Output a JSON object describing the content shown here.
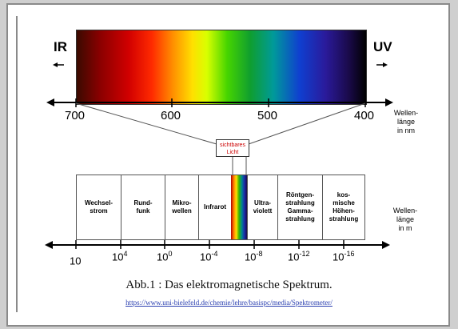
{
  "spectrum": {
    "ir_label": "IR",
    "uv_label": "UV",
    "wavelength_ticks_nm": [
      "700",
      "600",
      "500",
      "400"
    ],
    "axis_label_nm": [
      "Wellen-",
      "länge",
      "in nm"
    ],
    "visible_light_label": [
      "sichtbares",
      "Licht"
    ],
    "regions": [
      {
        "label": [
          "Wechsel-",
          "strom"
        ]
      },
      {
        "label": [
          "Rund-",
          "funk"
        ]
      },
      {
        "label": [
          "Mikro-",
          "wellen"
        ]
      },
      {
        "label": [
          "Infrarot"
        ]
      },
      {
        "label": [
          "Ultra-",
          "violett"
        ]
      },
      {
        "label": [
          "Röntgen-",
          "strahlung",
          "Gamma-",
          "strahlung"
        ]
      },
      {
        "label": [
          "kos-",
          "mische",
          "Höhen-",
          "strahlung"
        ]
      }
    ],
    "wavelength_ticks_m": [
      {
        "base": "10",
        "exp": ""
      },
      {
        "base": "10",
        "exp": "4"
      },
      {
        "base": "10",
        "exp": "0"
      },
      {
        "base": "10",
        "exp": "-4"
      },
      {
        "base": "10",
        "exp": "-8"
      },
      {
        "base": "10",
        "exp": "-12"
      },
      {
        "base": "10",
        "exp": "-16"
      }
    ],
    "axis_label_m": [
      "Wellen-",
      "länge",
      "in m"
    ]
  },
  "caption": "Abb.1 : Das elektromagnetische Spektrum.",
  "source_url": "https://www.uni-bielefeld.de/chemie/lehre/basispc/media/Spektrometer/"
}
